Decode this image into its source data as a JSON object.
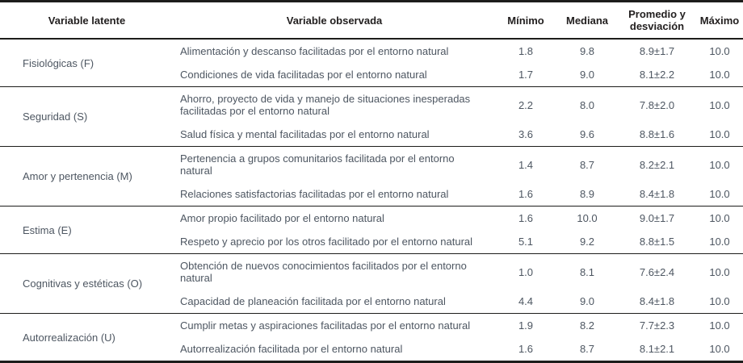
{
  "table": {
    "headers": {
      "latente": "Variable latente",
      "observada": "Variable observada",
      "minimo": "Mínimo",
      "mediana": "Mediana",
      "promedio": "Promedio y desviación",
      "maximo": "Máximo"
    },
    "groups": [
      {
        "label": "Fisiológicas (F)",
        "rows": [
          {
            "observada": "Alimentación y descanso facilitadas por el entorno natural",
            "minimo": "1.8",
            "mediana": "9.8",
            "promedio": "8.9±1.7",
            "maximo": "10.0"
          },
          {
            "observada": "Condiciones de vida facilitadas por el entorno natural",
            "minimo": "1.7",
            "mediana": "9.0",
            "promedio": "8.1±2.2",
            "maximo": "10.0"
          }
        ]
      },
      {
        "label": "Seguridad (S)",
        "rows": [
          {
            "observada": "Ahorro, proyecto de vida y manejo de situaciones inesperadas facilitadas por el entorno natural",
            "minimo": "2.2",
            "mediana": "8.0",
            "promedio": "7.8±2.0",
            "maximo": "10.0"
          },
          {
            "observada": "Salud física y mental facilitadas por el entorno natural",
            "minimo": "3.6",
            "mediana": "9.6",
            "promedio": "8.8±1.6",
            "maximo": "10.0"
          }
        ]
      },
      {
        "label": "Amor y pertenencia (M)",
        "rows": [
          {
            "observada": "Pertenencia a grupos comunitarios facilitada por el entorno natural",
            "minimo": "1.4",
            "mediana": "8.7",
            "promedio": "8.2±2.1",
            "maximo": "10.0"
          },
          {
            "observada": "Relaciones satisfactorias facilitadas por el entorno natural",
            "minimo": "1.6",
            "mediana": "8.9",
            "promedio": "8.4±1.8",
            "maximo": "10.0"
          }
        ]
      },
      {
        "label": "Estima (E)",
        "rows": [
          {
            "observada": "Amor propio facilitado por el entorno natural",
            "minimo": "1.6",
            "mediana": "10.0",
            "promedio": "9.0±1.7",
            "maximo": "10.0"
          },
          {
            "observada": "Respeto y aprecio por los otros facilitado por el entorno natural",
            "minimo": "5.1",
            "mediana": "9.2",
            "promedio": "8.8±1.5",
            "maximo": "10.0"
          }
        ]
      },
      {
        "label": "Cognitivas y estéticas (O)",
        "rows": [
          {
            "observada": "Obtención de nuevos conocimientos facilitados por el entorno natural",
            "minimo": "1.0",
            "mediana": "8.1",
            "promedio": "7.6±2.4",
            "maximo": "10.0"
          },
          {
            "observada": "Capacidad de planeación facilitada por el entorno natural",
            "minimo": "4.4",
            "mediana": "9.0",
            "promedio": "8.4±1.8",
            "maximo": "10.0"
          }
        ]
      },
      {
        "label": "Autorrealización (U)",
        "rows": [
          {
            "observada": "Cumplir metas y aspiraciones facilitadas por el entorno natural",
            "minimo": "1.9",
            "mediana": "8.2",
            "promedio": "7.7±2.3",
            "maximo": "10.0"
          },
          {
            "observada": "Autorrealización facilitada por el entorno natural",
            "minimo": "1.6",
            "mediana": "8.7",
            "promedio": "8.1±2.1",
            "maximo": "10.0"
          }
        ]
      }
    ],
    "colors": {
      "header_text": "#232020",
      "body_text": "#4d5661",
      "border": "#1d1d1b"
    }
  }
}
